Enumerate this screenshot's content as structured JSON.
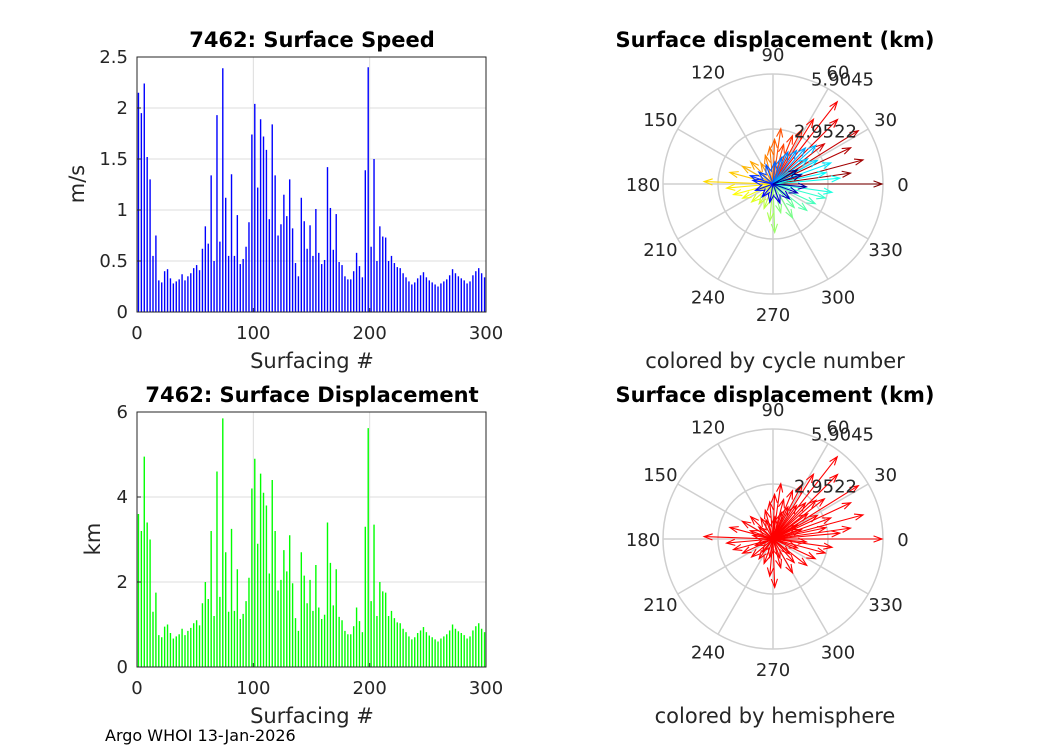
{
  "footer_text": "Argo WHOI 13-Jan-2026",
  "colors": {
    "speed_bars": "#0000ff",
    "displacement_bars": "#00ff00",
    "hemisphere_arrows": "#ff0000",
    "polar_grid": "#cfcfcf"
  },
  "chart_data": [
    {
      "id": "speed",
      "type": "bar",
      "title": "7462: Surface Speed",
      "xlabel": "Surfacing #",
      "ylabel": "m/s",
      "xlim": [
        0,
        300
      ],
      "ylim": [
        0,
        2.5
      ],
      "xticks": [
        "0",
        "100",
        "200",
        "300"
      ],
      "yticks": [
        "0",
        "0.5",
        "1",
        "1.5",
        "2",
        "2.5"
      ],
      "grid": true,
      "series": [
        {
          "values": [
            2.15,
            1.95,
            2.24,
            1.52,
            1.3,
            0.55,
            0.75,
            0.31,
            0.29,
            0.4,
            0.42,
            0.33,
            0.28,
            0.3,
            0.32,
            0.37,
            0.31,
            0.35,
            0.38,
            0.43,
            0.46,
            0.41,
            0.62,
            0.84,
            0.67,
            1.34,
            0.5,
            1.93,
            0.69,
            2.39,
            1.12,
            0.55,
            1.35,
            0.55,
            0.95,
            0.47,
            0.52,
            0.64,
            0.88,
            1.74,
            2.04,
            1.22,
            1.89,
            1.72,
            1.59,
            0.91,
            1.84,
            1.34,
            0.75,
            0.86,
            1.15,
            0.94,
            1.3,
            0.82,
            0.48,
            0.35,
            1.12,
            0.89,
            0.62,
            0.85,
            0.55,
            1.01,
            0.58,
            0.47,
            0.51,
            1.42,
            1.02,
            0.61,
            0.96,
            0.49,
            0.46,
            0.35,
            0.32,
            0.32,
            0.4,
            0.58,
            0.45,
            0.34,
            1.39,
            2.4,
            0.64,
            1.5,
            0.5,
            0.84,
            0.74,
            0.73,
            0.5,
            0.55,
            0.48,
            0.44,
            0.43,
            0.38,
            0.34,
            0.3,
            0.27,
            0.29,
            0.33,
            0.36,
            0.39,
            0.34,
            0.31,
            0.29,
            0.27,
            0.25,
            0.28,
            0.3,
            0.32,
            0.36,
            0.42,
            0.38,
            0.35,
            0.33,
            0.31,
            0.28,
            0.3,
            0.36,
            0.4,
            0.43,
            0.38,
            0.34
          ]
        }
      ]
    },
    {
      "id": "displacement",
      "type": "bar",
      "title": "7462: Surface Displacement",
      "xlabel": "Surfacing #",
      "ylabel": "km",
      "xlim": [
        0,
        300
      ],
      "ylim": [
        0,
        6
      ],
      "xticks": [
        "0",
        "100",
        "200",
        "300"
      ],
      "yticks": [
        "0",
        "2",
        "4",
        "6"
      ],
      "grid": true,
      "series": [
        {
          "values": [
            3.6,
            3.2,
            4.95,
            3.4,
            3.0,
            1.3,
            1.75,
            0.75,
            0.7,
            0.95,
            1.0,
            0.8,
            0.67,
            0.72,
            0.77,
            0.9,
            0.75,
            0.85,
            0.92,
            1.03,
            1.1,
            0.98,
            1.5,
            2.0,
            1.6,
            3.2,
            1.2,
            4.6,
            1.65,
            5.85,
            2.7,
            1.3,
            3.25,
            1.32,
            2.3,
            1.13,
            1.25,
            1.55,
            2.1,
            4.2,
            4.9,
            2.9,
            4.55,
            4.1,
            3.8,
            2.2,
            4.4,
            3.2,
            1.8,
            2.05,
            2.75,
            2.25,
            3.1,
            1.97,
            1.15,
            0.85,
            2.7,
            2.15,
            1.5,
            2.05,
            1.32,
            2.4,
            1.4,
            1.13,
            1.23,
            3.4,
            2.45,
            1.45,
            2.3,
            1.18,
            1.1,
            0.85,
            0.77,
            0.77,
            0.96,
            1.4,
            1.08,
            0.82,
            3.3,
            5.62,
            1.55,
            3.35,
            1.2,
            2.0,
            1.78,
            1.75,
            1.2,
            1.32,
            1.15,
            1.05,
            1.03,
            0.9,
            0.82,
            0.72,
            0.65,
            0.7,
            0.8,
            0.86,
            0.94,
            0.82,
            0.74,
            0.7,
            0.65,
            0.6,
            0.67,
            0.72,
            0.77,
            0.86,
            1.0,
            0.9,
            0.84,
            0.8,
            0.75,
            0.67,
            0.72,
            0.86,
            0.96,
            1.03,
            0.9,
            0.82
          ]
        }
      ]
    },
    {
      "id": "polar-cycle",
      "type": "scatter",
      "title": "Surface displacement (km)",
      "caption": "colored by cycle number",
      "angle_ticks": [
        "0",
        "30",
        "60",
        "90",
        "120",
        "150",
        "180",
        "210",
        "240",
        "270",
        "300",
        "330"
      ],
      "radial_ticks": [
        "2.9522",
        "5.9045"
      ],
      "rmax": 5.9045,
      "series": [
        {
          "name": "",
          "points": [
            [
              0,
              5.85
            ],
            [
              8,
              4.2
            ],
            [
              15,
              5.0
            ],
            [
              25,
              4.6
            ],
            [
              32,
              5.4
            ],
            [
              38,
              3.5
            ],
            [
              45,
              4.9
            ],
            [
              52,
              5.6
            ],
            [
              58,
              4.1
            ],
            [
              62,
              3.3
            ],
            [
              68,
              2.8
            ],
            [
              75,
              2.2
            ],
            [
              82,
              3.0
            ],
            [
              88,
              2.4
            ],
            [
              95,
              2.0
            ],
            [
              105,
              1.6
            ],
            [
              120,
              1.3
            ],
            [
              135,
              1.7
            ],
            [
              150,
              1.9
            ],
            [
              165,
              2.4
            ],
            [
              178,
              3.7
            ],
            [
              185,
              2.5
            ],
            [
              195,
              2.2
            ],
            [
              205,
              1.8
            ],
            [
              220,
              1.5
            ],
            [
              235,
              1.3
            ],
            [
              250,
              1.4
            ],
            [
              265,
              2.0
            ],
            [
              272,
              2.6
            ],
            [
              285,
              1.6
            ],
            [
              300,
              2.1
            ],
            [
              312,
              1.7
            ],
            [
              322,
              2.3
            ],
            [
              335,
              2.5
            ],
            [
              345,
              2.9
            ],
            [
              352,
              3.2
            ],
            [
              5,
              3.6
            ],
            [
              12,
              2.9
            ],
            [
              20,
              3.3
            ],
            [
              28,
              2.7
            ],
            [
              36,
              2.3
            ],
            [
              42,
              3.1
            ],
            [
              48,
              2.6
            ],
            [
              55,
              2.2
            ],
            [
              65,
              1.9
            ],
            [
              72,
              1.5
            ],
            [
              85,
              1.2
            ],
            [
              110,
              1.1
            ],
            [
              140,
              1.0
            ],
            [
              160,
              1.3
            ],
            [
              170,
              1.1
            ],
            [
              200,
              1.0
            ],
            [
              230,
              0.9
            ],
            [
              260,
              1.0
            ],
            [
              290,
              1.1
            ],
            [
              318,
              1.2
            ],
            [
              340,
              1.4
            ],
            [
              355,
              1.8
            ],
            [
              18,
              1.6
            ],
            [
              30,
              1.5
            ]
          ]
        }
      ]
    },
    {
      "id": "polar-hemisphere",
      "type": "scatter",
      "title": "Surface displacement (km)",
      "caption": "colored by hemisphere",
      "angle_ticks": [
        "0",
        "30",
        "60",
        "90",
        "120",
        "150",
        "180",
        "210",
        "240",
        "270",
        "300",
        "330"
      ],
      "radial_ticks": [
        "2.9522",
        "5.9045"
      ],
      "rmax": 5.9045,
      "series": [
        {
          "name": "",
          "points": [
            [
              0,
              5.85
            ],
            [
              8,
              4.2
            ],
            [
              15,
              5.0
            ],
            [
              25,
              4.6
            ],
            [
              32,
              5.4
            ],
            [
              38,
              3.5
            ],
            [
              45,
              4.9
            ],
            [
              52,
              5.6
            ],
            [
              58,
              4.1
            ],
            [
              62,
              3.3
            ],
            [
              68,
              2.8
            ],
            [
              75,
              2.2
            ],
            [
              82,
              3.0
            ],
            [
              88,
              2.4
            ],
            [
              95,
              2.0
            ],
            [
              105,
              1.6
            ],
            [
              120,
              1.3
            ],
            [
              135,
              1.7
            ],
            [
              150,
              1.9
            ],
            [
              165,
              2.4
            ],
            [
              178,
              3.7
            ],
            [
              185,
              2.5
            ],
            [
              195,
              2.2
            ],
            [
              205,
              1.8
            ],
            [
              220,
              1.5
            ],
            [
              235,
              1.3
            ],
            [
              250,
              1.4
            ],
            [
              265,
              2.0
            ],
            [
              272,
              2.6
            ],
            [
              285,
              1.6
            ],
            [
              300,
              2.1
            ],
            [
              312,
              1.7
            ],
            [
              322,
              2.3
            ],
            [
              335,
              2.5
            ],
            [
              345,
              2.9
            ],
            [
              352,
              3.2
            ],
            [
              5,
              3.6
            ],
            [
              12,
              2.9
            ],
            [
              20,
              3.3
            ],
            [
              28,
              2.7
            ],
            [
              36,
              2.3
            ],
            [
              42,
              3.1
            ],
            [
              48,
              2.6
            ],
            [
              55,
              2.2
            ],
            [
              65,
              1.9
            ],
            [
              72,
              1.5
            ],
            [
              85,
              1.2
            ],
            [
              110,
              1.1
            ],
            [
              140,
              1.0
            ],
            [
              160,
              1.3
            ],
            [
              170,
              1.1
            ],
            [
              200,
              1.0
            ],
            [
              230,
              0.9
            ],
            [
              260,
              1.0
            ],
            [
              290,
              1.1
            ],
            [
              318,
              1.2
            ],
            [
              340,
              1.4
            ],
            [
              355,
              1.8
            ],
            [
              18,
              1.6
            ],
            [
              30,
              1.5
            ]
          ]
        }
      ]
    }
  ]
}
